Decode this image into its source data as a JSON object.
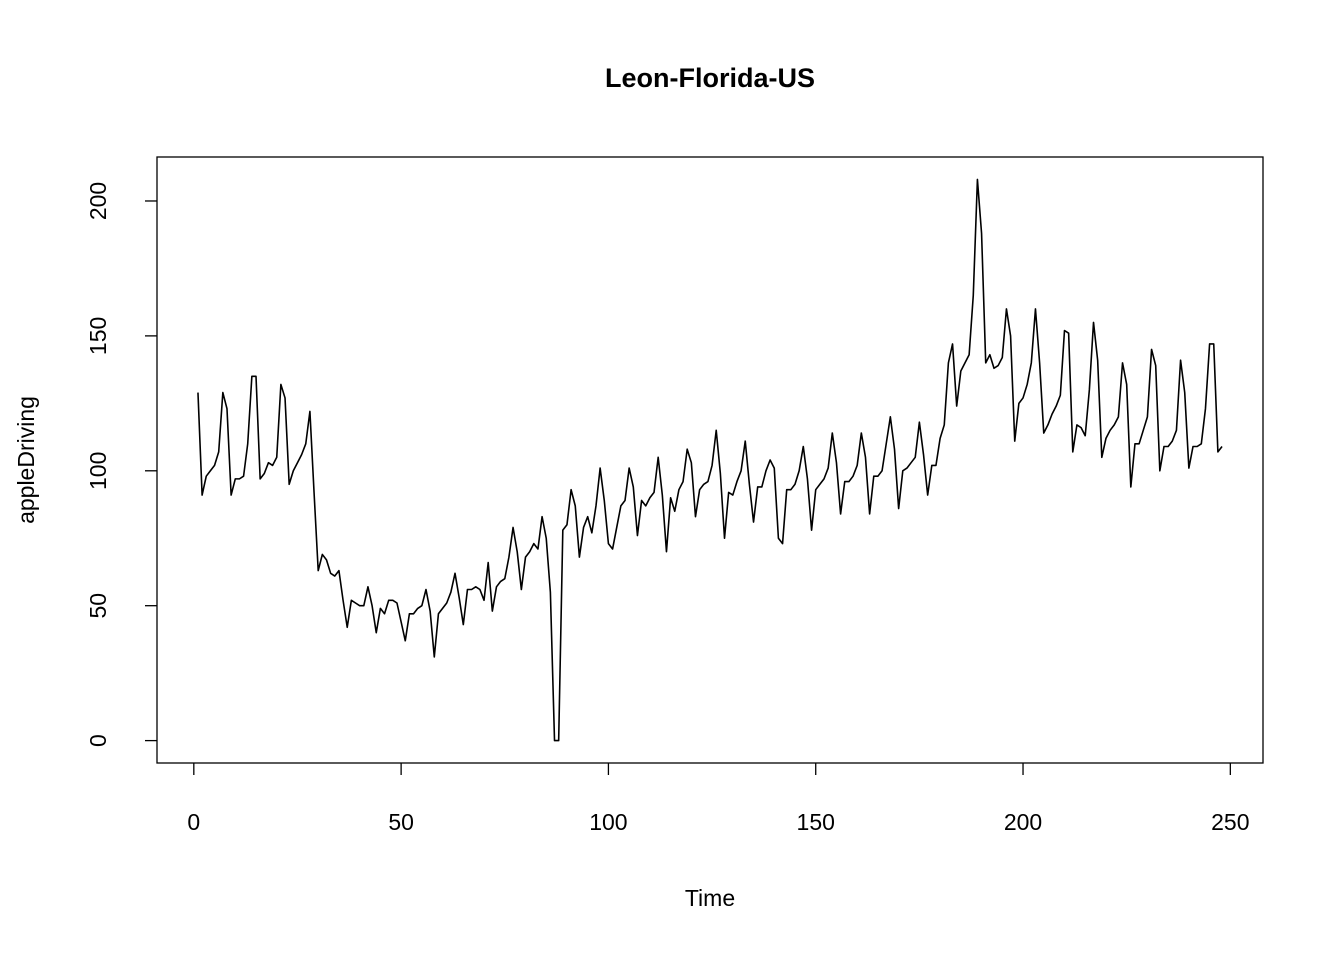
{
  "chart_data": {
    "type": "line",
    "title": "Leon-Florida-US",
    "x_label": "Time",
    "y_label": "appleDriving",
    "x": [
      1,
      2,
      3,
      4,
      5,
      6,
      7,
      8,
      9,
      10,
      11,
      12,
      13,
      14,
      15,
      16,
      17,
      18,
      19,
      20,
      21,
      22,
      23,
      24,
      25,
      26,
      27,
      28,
      29,
      30,
      31,
      32,
      33,
      34,
      35,
      36,
      37,
      38,
      39,
      40,
      41,
      42,
      43,
      44,
      45,
      46,
      47,
      48,
      49,
      50,
      51,
      52,
      53,
      54,
      55,
      56,
      57,
      58,
      59,
      60,
      61,
      62,
      63,
      64,
      65,
      66,
      67,
      68,
      69,
      70,
      71,
      72,
      73,
      74,
      75,
      76,
      77,
      78,
      79,
      80,
      81,
      82,
      83,
      84,
      85,
      86,
      87,
      88,
      89,
      90,
      91,
      92,
      93,
      94,
      95,
      96,
      97,
      98,
      99,
      100,
      101,
      102,
      103,
      104,
      105,
      106,
      107,
      108,
      109,
      110,
      111,
      112,
      113,
      114,
      115,
      116,
      117,
      118,
      119,
      120,
      121,
      122,
      123,
      124,
      125,
      126,
      127,
      128,
      129,
      130,
      131,
      132,
      133,
      134,
      135,
      136,
      137,
      138,
      139,
      140,
      141,
      142,
      143,
      144,
      145,
      146,
      147,
      148,
      149,
      150,
      151,
      152,
      153,
      154,
      155,
      156,
      157,
      158,
      159,
      160,
      161,
      162,
      163,
      164,
      165,
      166,
      167,
      168,
      169,
      170,
      171,
      172,
      173,
      174,
      175,
      176,
      177,
      178,
      179,
      180,
      181,
      182,
      183,
      184,
      185,
      186,
      187,
      188,
      189,
      190,
      191,
      192,
      193,
      194,
      195,
      196,
      197,
      198,
      199,
      200,
      201,
      202,
      203,
      204,
      205,
      206,
      207,
      208,
      209,
      210,
      211,
      212,
      213,
      214,
      215,
      216,
      217,
      218,
      219,
      220,
      221,
      222,
      223,
      224,
      225,
      226,
      227,
      228,
      229,
      230,
      231,
      232,
      233,
      234,
      235,
      236,
      237,
      238,
      239,
      240,
      241,
      242,
      243,
      244,
      245,
      246,
      247,
      248
    ],
    "series": [
      {
        "color": "#000000",
        "values": [
          129,
          91,
          98,
          100,
          102,
          107,
          129,
          123,
          91,
          97,
          97,
          98,
          110,
          135,
          135,
          97,
          99,
          103,
          102,
          105,
          132,
          127,
          95,
          100,
          103,
          106,
          110,
          122,
          92,
          63,
          69,
          67,
          62,
          61,
          63,
          52,
          42,
          52,
          51,
          50,
          50,
          57,
          50,
          40,
          49,
          47,
          52,
          52,
          51,
          44,
          37,
          47,
          47,
          49,
          50,
          56,
          48,
          31,
          47,
          49,
          51,
          55,
          62,
          53,
          43,
          56,
          56,
          57,
          56,
          52,
          66,
          48,
          57,
          59,
          60,
          68,
          79,
          70,
          56,
          68,
          70,
          73,
          71,
          83,
          75,
          55,
          0,
          0,
          78,
          80,
          93,
          87,
          68,
          79,
          83,
          77,
          87,
          101,
          89,
          73,
          71,
          79,
          87,
          89,
          101,
          94,
          76,
          89,
          87,
          90,
          92,
          105,
          91,
          70,
          90,
          85,
          93,
          96,
          108,
          103,
          83,
          93,
          95,
          96,
          102,
          115,
          99,
          75,
          92,
          91,
          96,
          100,
          111,
          95,
          81,
          94,
          94,
          100,
          104,
          101,
          75,
          73,
          93,
          93,
          95,
          100,
          109,
          97,
          78,
          93,
          95,
          97,
          101,
          114,
          103,
          84,
          96,
          96,
          98,
          102,
          114,
          105,
          84,
          98,
          98,
          100,
          110,
          120,
          108,
          86,
          100,
          101,
          103,
          105,
          118,
          106,
          91,
          102,
          102,
          112,
          117,
          140,
          147,
          124,
          137,
          140,
          143,
          165,
          208,
          188,
          140,
          143,
          138,
          139,
          142,
          160,
          150,
          111,
          125,
          127,
          132,
          140,
          160,
          140,
          114,
          117,
          121,
          124,
          128,
          152,
          151,
          107,
          117,
          116,
          113,
          130,
          155,
          141,
          105,
          112,
          115,
          117,
          120,
          140,
          132,
          94,
          110,
          110,
          115,
          120,
          145,
          139,
          100,
          109,
          109,
          111,
          115,
          141,
          129,
          101,
          109,
          109,
          110,
          123,
          147,
          147,
          107,
          109
        ]
      }
    ],
    "xlim": [
      -8.88,
      257.88
    ],
    "xticks": [
      0,
      50,
      100,
      150,
      200,
      250
    ],
    "ylim": [
      -8.3,
      216.3
    ],
    "yticks": [
      0,
      50,
      100,
      150,
      200
    ]
  }
}
